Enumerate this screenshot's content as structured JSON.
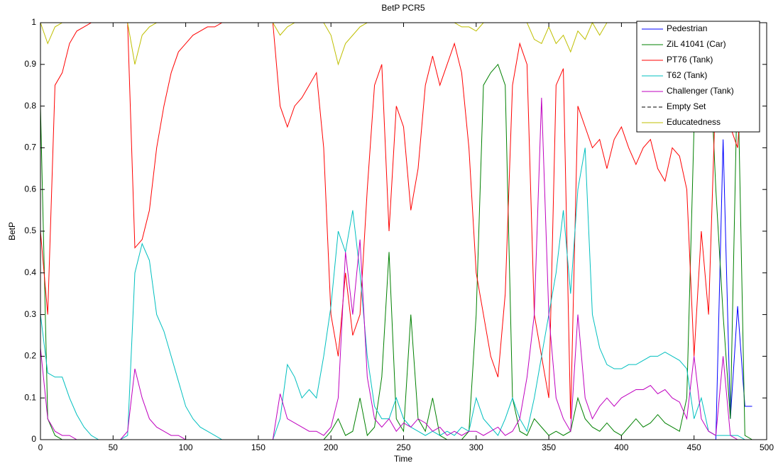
{
  "chart_data": {
    "type": "line",
    "title": "BetP PCR5",
    "xlabel": "Time",
    "ylabel": "BetP",
    "x": [
      0,
      5,
      10,
      15,
      20,
      25,
      30,
      35,
      40,
      45,
      50,
      55,
      60,
      65,
      70,
      75,
      80,
      85,
      90,
      95,
      100,
      105,
      110,
      115,
      120,
      125,
      130,
      135,
      140,
      145,
      150,
      155,
      160,
      165,
      170,
      175,
      180,
      185,
      190,
      195,
      200,
      205,
      210,
      215,
      220,
      225,
      230,
      235,
      240,
      245,
      250,
      255,
      260,
      265,
      270,
      275,
      280,
      285,
      290,
      295,
      300,
      305,
      310,
      315,
      320,
      325,
      330,
      335,
      340,
      345,
      350,
      355,
      360,
      365,
      370,
      375,
      380,
      385,
      390,
      395,
      400,
      405,
      410,
      415,
      420,
      425,
      430,
      435,
      440,
      445,
      450,
      455,
      460,
      465,
      470,
      475,
      480,
      485,
      490
    ],
    "series": [
      {
        "name": "Pedestrian",
        "color": "#0000ff",
        "values": [
          0,
          0,
          0,
          0,
          0,
          0,
          0,
          0,
          0,
          0,
          0,
          0,
          0,
          0,
          0,
          0,
          0,
          0,
          0,
          0,
          0,
          0,
          0,
          0,
          0,
          0,
          0,
          0,
          0,
          0,
          0,
          0,
          0,
          0,
          0,
          0,
          0,
          0,
          0,
          0,
          0,
          0,
          0,
          0,
          0,
          0,
          0,
          0,
          0,
          0,
          0,
          0,
          0,
          0,
          0,
          0,
          0,
          0,
          0,
          0,
          0,
          0,
          0,
          0,
          0,
          0,
          0,
          0,
          0,
          0,
          0,
          0,
          0,
          0,
          0,
          0,
          0,
          0,
          0,
          0,
          0,
          0,
          0,
          0,
          0,
          0,
          0,
          0,
          0,
          0,
          0,
          0,
          0,
          0,
          0.72,
          0.05,
          0.32,
          0.08,
          0.08
        ]
      },
      {
        "name": "ZiL 41041 (Car)",
        "color": "#008000",
        "values": [
          0.8,
          0.05,
          0.01,
          0,
          0,
          0,
          0,
          0,
          0,
          0,
          0,
          0,
          0,
          0,
          0,
          0,
          0,
          0,
          0,
          0,
          0,
          0,
          0,
          0,
          0,
          0,
          0,
          0,
          0,
          0,
          0,
          0,
          0,
          0,
          0,
          0,
          0,
          0,
          0,
          0,
          0.02,
          0.05,
          0.01,
          0.02,
          0.1,
          0.01,
          0.03,
          0.15,
          0.45,
          0.05,
          0.02,
          0.3,
          0.05,
          0.02,
          0.1,
          0.01,
          0,
          0,
          0,
          0.02,
          0.3,
          0.85,
          0.88,
          0.9,
          0.85,
          0.1,
          0.02,
          0.01,
          0.05,
          0.03,
          0.01,
          0.02,
          0.01,
          0.02,
          0.1,
          0.05,
          0.03,
          0.02,
          0.04,
          0.02,
          0.01,
          0.03,
          0.05,
          0.03,
          0.04,
          0.06,
          0.04,
          0.03,
          0.02,
          0.1,
          0.75,
          0.8,
          0.99,
          0.6,
          0.3,
          0.05,
          0.9,
          0.01,
          0
        ]
      },
      {
        "name": "PT76 (Tank)",
        "color": "#ff0000",
        "values": [
          0.5,
          0.3,
          0.85,
          0.88,
          0.95,
          0.98,
          0.99,
          1,
          1,
          1,
          1,
          1,
          1,
          0.46,
          0.48,
          0.55,
          0.7,
          0.8,
          0.88,
          0.93,
          0.95,
          0.97,
          0.98,
          0.99,
          0.99,
          1,
          1,
          1,
          1,
          1,
          1,
          1,
          1,
          0.8,
          0.75,
          0.8,
          0.82,
          0.85,
          0.88,
          0.7,
          0.3,
          0.2,
          0.4,
          0.25,
          0.3,
          0.6,
          0.85,
          0.9,
          0.5,
          0.8,
          0.75,
          0.55,
          0.65,
          0.85,
          0.92,
          0.85,
          0.9,
          0.95,
          0.88,
          0.7,
          0.4,
          0.3,
          0.2,
          0.15,
          0.35,
          0.85,
          0.95,
          0.9,
          0.3,
          0.2,
          0.1,
          0.85,
          0.89,
          0.05,
          0.8,
          0.75,
          0.7,
          0.72,
          0.65,
          0.72,
          0.75,
          0.7,
          0.66,
          0.7,
          0.72,
          0.65,
          0.62,
          0.7,
          0.68,
          0.6,
          0.2,
          0.5,
          0.3,
          0.85,
          0.9,
          0.75,
          0.7,
          0.95,
          1
        ]
      },
      {
        "name": "T62 (Tank)",
        "color": "#00bfbf",
        "values": [
          0.3,
          0.16,
          0.15,
          0.15,
          0.1,
          0.06,
          0.03,
          0.01,
          0,
          0,
          0,
          0,
          0.01,
          0.4,
          0.47,
          0.43,
          0.3,
          0.26,
          0.2,
          0.14,
          0.08,
          0.05,
          0.03,
          0.02,
          0.01,
          0,
          0,
          0,
          0,
          0,
          0,
          0,
          0,
          0.05,
          0.18,
          0.15,
          0.1,
          0.12,
          0.1,
          0.2,
          0.32,
          0.5,
          0.45,
          0.55,
          0.4,
          0.2,
          0.08,
          0.05,
          0.05,
          0.1,
          0.05,
          0.03,
          0.02,
          0.01,
          0.02,
          0.01,
          0.02,
          0.01,
          0.03,
          0.02,
          0.1,
          0.05,
          0.03,
          0.01,
          0.05,
          0.1,
          0.05,
          0.02,
          0.1,
          0.2,
          0.3,
          0.4,
          0.55,
          0.35,
          0.6,
          0.7,
          0.3,
          0.22,
          0.18,
          0.17,
          0.17,
          0.18,
          0.18,
          0.19,
          0.2,
          0.2,
          0.21,
          0.2,
          0.19,
          0.17,
          0.05,
          0.1,
          0.02,
          0.01,
          0.01,
          0.01,
          0.01,
          0,
          0
        ]
      },
      {
        "name": "Challenger (Tank)",
        "color": "#bf00bf",
        "values": [
          0.22,
          0.05,
          0.02,
          0.01,
          0.01,
          0,
          0,
          0,
          0,
          0,
          0,
          0,
          0.02,
          0.17,
          0.1,
          0.05,
          0.03,
          0.02,
          0.01,
          0.01,
          0,
          0,
          0,
          0,
          0,
          0,
          0,
          0,
          0,
          0,
          0,
          0,
          0,
          0.11,
          0.05,
          0.04,
          0.03,
          0.02,
          0.02,
          0.01,
          0.03,
          0.1,
          0.45,
          0.3,
          0.48,
          0.15,
          0.05,
          0.03,
          0.05,
          0.02,
          0.04,
          0.03,
          0.05,
          0.04,
          0.02,
          0.03,
          0.01,
          0.02,
          0.01,
          0.02,
          0.02,
          0.01,
          0.02,
          0.03,
          0.01,
          0.02,
          0.05,
          0.15,
          0.3,
          0.82,
          0.3,
          0.1,
          0.05,
          0.02,
          0.3,
          0.1,
          0.05,
          0.08,
          0.1,
          0.08,
          0.1,
          0.11,
          0.12,
          0.12,
          0.13,
          0.11,
          0.12,
          0.1,
          0.09,
          0.05,
          0.2,
          0.05,
          0.02,
          0.01,
          0.2,
          0.01,
          0,
          0,
          0
        ]
      },
      {
        "name": "Empty Set",
        "color": "#000000",
        "linestyle": "--",
        "values": [
          0,
          0,
          0,
          0,
          0,
          0,
          0,
          0,
          0,
          0,
          0,
          0,
          0,
          0,
          0,
          0,
          0,
          0,
          0,
          0,
          0,
          0,
          0,
          0,
          0,
          0,
          0,
          0,
          0,
          0,
          0,
          0,
          0,
          0,
          0,
          0,
          0,
          0,
          0,
          0,
          0,
          0,
          0,
          0,
          0,
          0,
          0,
          0,
          0,
          0,
          0,
          0,
          0,
          0,
          0,
          0,
          0,
          0,
          0,
          0,
          0,
          0,
          0,
          0,
          0,
          0,
          0,
          0,
          0,
          0,
          0,
          0,
          0,
          0,
          0,
          0,
          0,
          0,
          0,
          0,
          0,
          0,
          0,
          0,
          0,
          0,
          0,
          0,
          0,
          0,
          0,
          0,
          0,
          0,
          0,
          0,
          0,
          0,
          0
        ]
      },
      {
        "name": "Educatedness",
        "color": "#bfbf00",
        "values": [
          1,
          0.95,
          0.99,
          1,
          1,
          1,
          1,
          1,
          1,
          1,
          1,
          1,
          1,
          0.9,
          0.97,
          0.99,
          1,
          1,
          1,
          1,
          1,
          1,
          1,
          1,
          1,
          1,
          1,
          1,
          1,
          1,
          1,
          1,
          1,
          0.97,
          0.99,
          1,
          1,
          1,
          1,
          1,
          0.97,
          0.9,
          0.95,
          0.97,
          0.99,
          1,
          1,
          1,
          1,
          1,
          1,
          1,
          1,
          1,
          1,
          1,
          1,
          1,
          0.99,
          0.99,
          0.98,
          1,
          1,
          1,
          1,
          1,
          1,
          1,
          0.96,
          0.95,
          0.99,
          0.95,
          0.97,
          0.93,
          0.98,
          0.96,
          1,
          0.97,
          1,
          1,
          1,
          1,
          1,
          1,
          1,
          1,
          1,
          1,
          1,
          0.97,
          0.98,
          1,
          1,
          1,
          1,
          1,
          1,
          1,
          1
        ]
      }
    ],
    "xlim": [
      0,
      500
    ],
    "xticks": [
      0,
      50,
      100,
      150,
      200,
      250,
      300,
      350,
      400,
      450,
      500
    ],
    "ylim": [
      0,
      1
    ],
    "yticks": [
      0,
      0.1,
      0.2,
      0.3,
      0.4,
      0.5,
      0.6,
      0.7,
      0.8,
      0.9,
      1
    ],
    "legend": "northeast"
  }
}
